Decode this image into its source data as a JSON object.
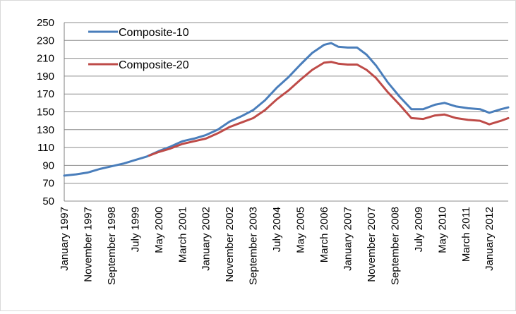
{
  "chart_data": {
    "type": "line",
    "title": "",
    "xlabel": "",
    "ylabel": "",
    "ylim": [
      50,
      250
    ],
    "y_ticks": [
      50,
      70,
      90,
      110,
      130,
      150,
      170,
      190,
      210,
      230,
      250
    ],
    "grid": true,
    "legend_position": "top-left",
    "x_tick_labels": [
      "January 1997",
      "November 1997",
      "September 1998",
      "July 1999",
      "May 2000",
      "March 2001",
      "January 2002",
      "November 2002",
      "September 2003",
      "July 2004",
      "May 2005",
      "March 2006",
      "January 2007",
      "November 2007",
      "September 2008",
      "July 2009",
      "May 2010",
      "March 2011",
      "January 2012"
    ],
    "x_range": [
      "1997-01",
      "2012-09"
    ],
    "series": [
      {
        "name": "Composite-10",
        "color": "#4a7ebb",
        "points": [
          [
            "1997-01",
            78.5
          ],
          [
            "1997-06",
            80
          ],
          [
            "1997-11",
            82
          ],
          [
            "1998-04",
            86
          ],
          [
            "1998-09",
            89
          ],
          [
            "1999-02",
            92
          ],
          [
            "1999-07",
            96
          ],
          [
            "1999-12",
            100
          ],
          [
            "2000-05",
            106
          ],
          [
            "2000-10",
            111
          ],
          [
            "2001-03",
            117
          ],
          [
            "2001-08",
            120
          ],
          [
            "2002-01",
            124
          ],
          [
            "2002-06",
            130
          ],
          [
            "2002-11",
            139
          ],
          [
            "2003-04",
            145
          ],
          [
            "2003-09",
            152
          ],
          [
            "2004-02",
            163
          ],
          [
            "2004-07",
            177
          ],
          [
            "2004-12",
            189
          ],
          [
            "2005-05",
            203
          ],
          [
            "2005-10",
            216
          ],
          [
            "2006-03",
            225
          ],
          [
            "2006-06",
            227
          ],
          [
            "2006-09",
            223
          ],
          [
            "2007-01",
            222
          ],
          [
            "2007-05",
            222
          ],
          [
            "2007-09",
            214
          ],
          [
            "2008-01",
            202
          ],
          [
            "2008-06",
            183
          ],
          [
            "2008-11",
            167
          ],
          [
            "2009-04",
            153
          ],
          [
            "2009-09",
            153
          ],
          [
            "2010-02",
            158
          ],
          [
            "2010-06",
            160
          ],
          [
            "2010-11",
            156
          ],
          [
            "2011-04",
            154
          ],
          [
            "2011-09",
            153
          ],
          [
            "2012-01",
            149
          ],
          [
            "2012-06",
            153
          ],
          [
            "2012-09",
            155
          ]
        ]
      },
      {
        "name": "Composite-20",
        "color": "#be4b48",
        "points": [
          [
            "2000-01",
            101
          ],
          [
            "2000-05",
            105
          ],
          [
            "2000-10",
            109
          ],
          [
            "2001-03",
            114
          ],
          [
            "2001-08",
            117
          ],
          [
            "2002-01",
            120
          ],
          [
            "2002-06",
            126
          ],
          [
            "2002-11",
            133
          ],
          [
            "2003-04",
            138
          ],
          [
            "2003-09",
            143
          ],
          [
            "2004-02",
            152
          ],
          [
            "2004-07",
            164
          ],
          [
            "2004-12",
            174
          ],
          [
            "2005-05",
            186
          ],
          [
            "2005-10",
            197
          ],
          [
            "2006-03",
            205
          ],
          [
            "2006-06",
            206
          ],
          [
            "2006-09",
            204
          ],
          [
            "2007-01",
            203
          ],
          [
            "2007-05",
            203
          ],
          [
            "2007-09",
            197
          ],
          [
            "2008-01",
            188
          ],
          [
            "2008-06",
            172
          ],
          [
            "2008-11",
            158
          ],
          [
            "2009-04",
            143
          ],
          [
            "2009-09",
            142
          ],
          [
            "2010-02",
            146
          ],
          [
            "2010-06",
            147
          ],
          [
            "2010-11",
            143
          ],
          [
            "2011-04",
            141
          ],
          [
            "2011-09",
            140
          ],
          [
            "2012-01",
            136
          ],
          [
            "2012-06",
            140
          ],
          [
            "2012-09",
            143
          ]
        ]
      }
    ]
  }
}
